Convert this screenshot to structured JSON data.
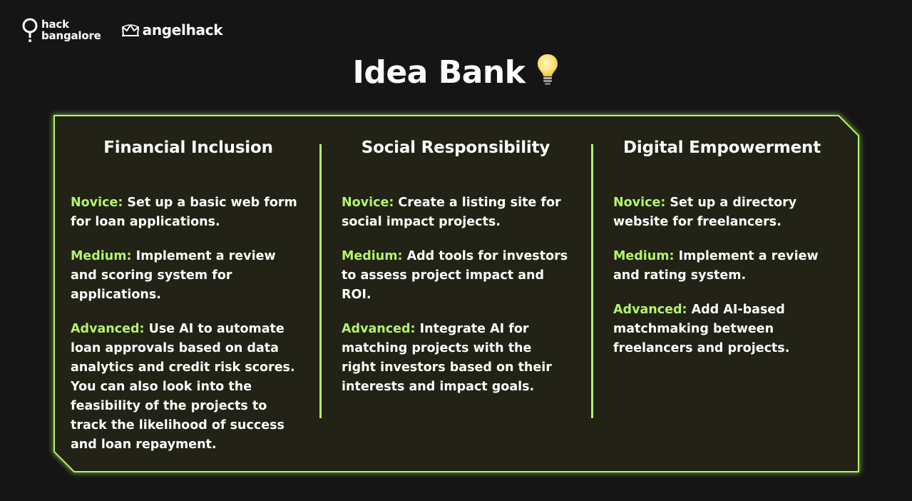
{
  "header": {
    "hack_logo_line1": "hack",
    "hack_logo_line2": "bangalore",
    "angelhack_label": "angelhack"
  },
  "page_title": "Idea Bank",
  "colors": {
    "background": "#151515",
    "panel_background": "#212419",
    "accent": "#b5f36a",
    "text": "#ffffff"
  },
  "columns": [
    {
      "title": "Financial Inclusion",
      "novice_label": "Novice:",
      "novice_text": "Set up a basic web form for loan applications.",
      "medium_label": "Medium:",
      "medium_text": "Implement a review and scoring system for applications.",
      "advanced_label": "Advanced:",
      "advanced_text": "Use AI to automate loan approvals based on data analytics and credit risk scores. You can also look into the feasibility of the projects to track the likelihood of success and loan repayment."
    },
    {
      "title": "Social Responsibility",
      "novice_label": "Novice:",
      "novice_text": "Create a listing site for social impact projects.",
      "medium_label": "Medium:",
      "medium_text": "Add tools for investors to assess project impact and ROI.",
      "advanced_label": "Advanced:",
      "advanced_text": "Integrate AI for matching projects with the right investors based on their interests and impact goals."
    },
    {
      "title": "Digital Empowerment",
      "novice_label": "Novice:",
      "novice_text": "Set up a directory website for freelancers.",
      "medium_label": "Medium:",
      "medium_text": "Implement a review and rating system.",
      "advanced_label": "Advanced:",
      "advanced_text": "Add AI-based matchmaking between freelancers and projects."
    }
  ]
}
